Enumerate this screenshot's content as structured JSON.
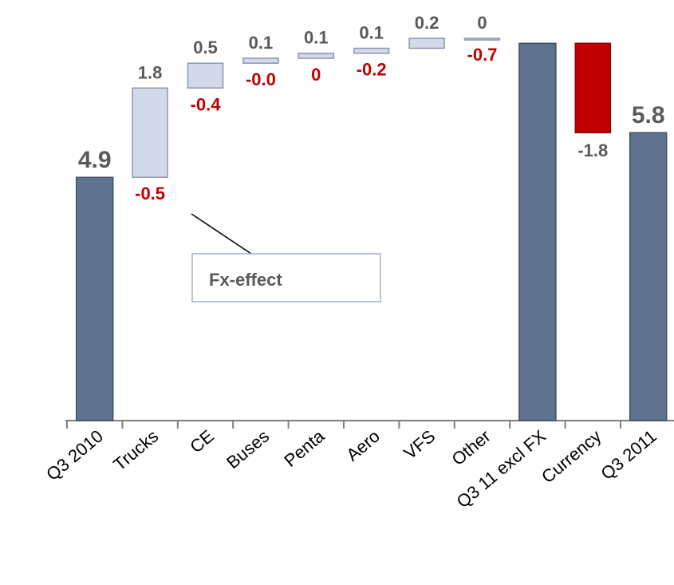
{
  "chart_data": {
    "type": "waterfall",
    "categories": [
      "Q3 2010",
      "Trucks",
      "CE",
      "Buses",
      "Penta",
      "Aero",
      "VFS",
      "Other",
      "Q3 11 excl  FX",
      "Currency",
      "Q3 2011"
    ],
    "values": [
      4.9,
      1.8,
      0.5,
      0.1,
      0.1,
      0.1,
      0.2,
      0,
      7.6,
      -1.8,
      5.8
    ],
    "value_labels": [
      "4.9",
      "1.8",
      "0.5",
      "0.1",
      "0.1",
      "0.1",
      "0.2",
      "0",
      null,
      "-1.8",
      "5.8"
    ],
    "measure": [
      "total",
      "relative",
      "relative",
      "relative",
      "relative",
      "relative",
      "relative",
      "relative",
      "total",
      "relative",
      "total"
    ],
    "colors": {
      "total": "#5f7391",
      "increase": "#d3d8ea",
      "decrease": "#c00000"
    },
    "ylim": [
      0,
      8
    ],
    "fx_effect": {
      "label": "Fx-effect",
      "values": [
        null,
        -0.5,
        -0.4,
        -0.0,
        0,
        -0.2,
        null,
        -0.7,
        null,
        null,
        null
      ],
      "value_labels": [
        null,
        "-0.5",
        "-0.4",
        "-0.0",
        "0",
        "-0.2",
        null,
        "-0.7",
        null,
        null,
        null
      ]
    }
  }
}
